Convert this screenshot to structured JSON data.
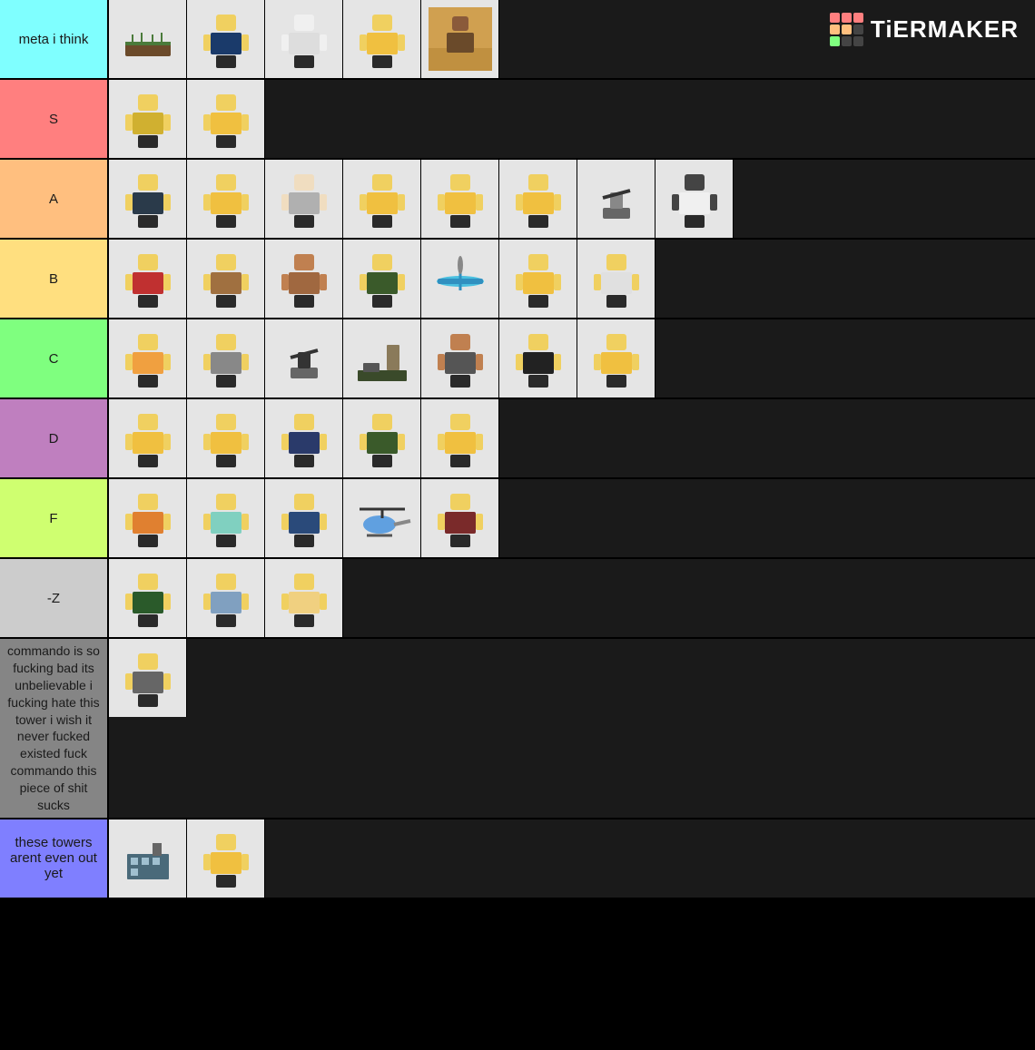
{
  "logo_text": "TiERMAKER",
  "logo_colors": [
    "#ff7f7f",
    "#ff7f7f",
    "#ff7f7f",
    "#ffbf7f",
    "#ffbf7f",
    "#444",
    "#7fff7f",
    "#444",
    "#444"
  ],
  "tiers": [
    {
      "label": "meta i think",
      "bg": "#7fffff",
      "items": [
        {
          "type": "flat",
          "c1": "#6b4a2a"
        },
        {
          "type": "char",
          "body": "#1a3a6a",
          "head": "#f0d060"
        },
        {
          "type": "char",
          "body": "#ddd",
          "head": "#f0f0f0"
        },
        {
          "type": "char",
          "body": "#f0c040",
          "head": "#f0d060"
        },
        {
          "type": "scene",
          "c1": "#b07030"
        }
      ]
    },
    {
      "label": "S",
      "bg": "#ff7f7f",
      "items": [
        {
          "type": "char",
          "body": "#d0b030",
          "head": "#f0d060"
        },
        {
          "type": "char",
          "body": "#f0c040",
          "head": "#f0d060"
        }
      ]
    },
    {
      "label": "A",
      "bg": "#ffbf7f",
      "items": [
        {
          "type": "char",
          "body": "#2a3a4a",
          "head": "#f0d060"
        },
        {
          "type": "char",
          "body": "#f0c040",
          "head": "#f0d060"
        },
        {
          "type": "char",
          "body": "#b0b0b0",
          "head": "#f0ddc0"
        },
        {
          "type": "char",
          "body": "#f0c040",
          "head": "#f0d060"
        },
        {
          "type": "char",
          "body": "#f0c040",
          "head": "#f0d060"
        },
        {
          "type": "char",
          "body": "#f0c040",
          "head": "#f0d060"
        },
        {
          "type": "turret",
          "c1": "#888"
        },
        {
          "type": "char",
          "body": "#f0f0f0",
          "head": "#444"
        }
      ]
    },
    {
      "label": "B",
      "bg": "#ffdf7f",
      "items": [
        {
          "type": "char",
          "body": "#c03030",
          "head": "#f0d060"
        },
        {
          "type": "char",
          "body": "#a07040",
          "head": "#f0d060"
        },
        {
          "type": "char",
          "body": "#a06840",
          "head": "#c08050"
        },
        {
          "type": "char",
          "body": "#3a5a2a",
          "head": "#f0d060"
        },
        {
          "type": "plane",
          "c1": "#4ac0e0"
        },
        {
          "type": "char",
          "body": "#f0c040",
          "head": "#f0d060"
        },
        {
          "type": "char",
          "body": "#e0e0e0",
          "head": "#f0d060"
        }
      ]
    },
    {
      "label": "C",
      "bg": "#7fff7f",
      "items": [
        {
          "type": "char",
          "body": "#f0a040",
          "head": "#f0d060"
        },
        {
          "type": "char",
          "body": "#888",
          "head": "#f0d060"
        },
        {
          "type": "turret",
          "c1": "#333"
        },
        {
          "type": "base",
          "c1": "#555"
        },
        {
          "type": "char",
          "body": "#555",
          "head": "#c08050"
        },
        {
          "type": "char",
          "body": "#222",
          "head": "#f0d060"
        },
        {
          "type": "char",
          "body": "#f0c040",
          "head": "#f0d060"
        }
      ]
    },
    {
      "label": "D",
      "bg": "#bf7fbf",
      "items": [
        {
          "type": "char",
          "body": "#f0c040",
          "head": "#f0d060"
        },
        {
          "type": "char",
          "body": "#f0c040",
          "head": "#f0d060"
        },
        {
          "type": "char",
          "body": "#2a3a6a",
          "head": "#f0d060"
        },
        {
          "type": "char",
          "body": "#3a5a2a",
          "head": "#f0d060"
        },
        {
          "type": "char",
          "body": "#f0c040",
          "head": "#f0d060"
        }
      ]
    },
    {
      "label": "F",
      "bg": "#cfff70",
      "items": [
        {
          "type": "char",
          "body": "#e08030",
          "head": "#f0d060"
        },
        {
          "type": "char",
          "body": "#80d0c0",
          "head": "#f0d060"
        },
        {
          "type": "char",
          "body": "#2a4a7a",
          "head": "#f0d060"
        },
        {
          "type": "heli",
          "c1": "#60a0e0"
        },
        {
          "type": "char",
          "body": "#7a2a2a",
          "head": "#f0d060"
        }
      ]
    },
    {
      "label": "-Z",
      "bg": "#cccccc",
      "items": [
        {
          "type": "char",
          "body": "#2a5a2a",
          "head": "#f0d060"
        },
        {
          "type": "char",
          "body": "#80a0c0",
          "head": "#f0d060"
        },
        {
          "type": "char",
          "body": "#f0d080",
          "head": "#f0d060"
        }
      ]
    },
    {
      "label": "commando is so fucking bad its unbelievable i fucking hate this tower i wish it never fucked existed fuck commando this piece of shit sucks",
      "bg": "#858585",
      "items": [
        {
          "type": "char",
          "body": "#666",
          "head": "#f0d060"
        }
      ]
    },
    {
      "label": "these towers arent even out yet",
      "bg": "#7f7fff",
      "items": [
        {
          "type": "building",
          "c1": "#4a6a7a"
        },
        {
          "type": "char",
          "body": "#f0c040",
          "head": "#f0d060"
        }
      ]
    }
  ]
}
